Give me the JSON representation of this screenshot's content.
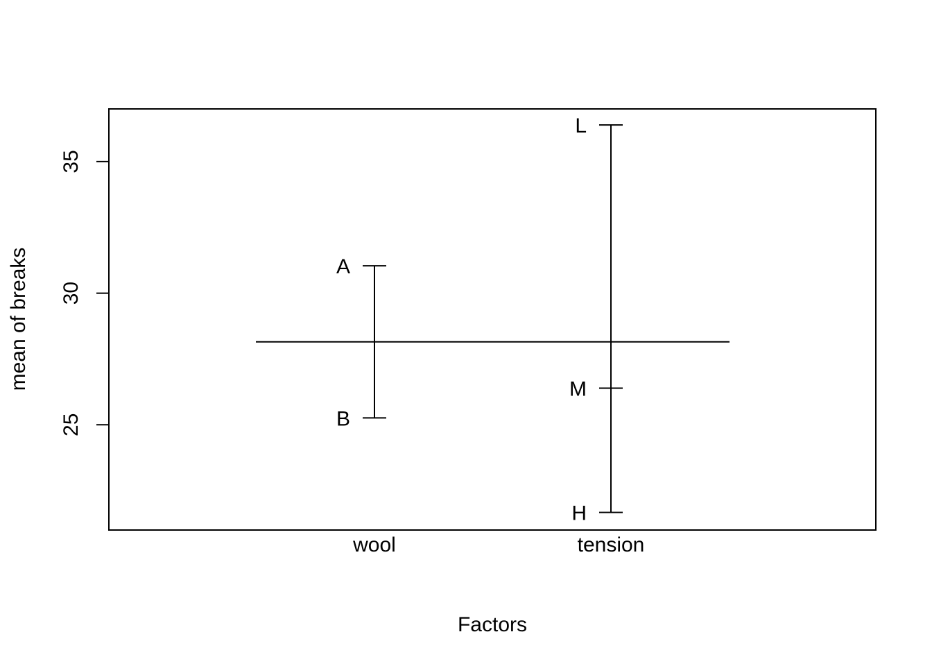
{
  "chart_data": {
    "type": "plot.design",
    "title": "",
    "xlabel": "Factors",
    "ylabel": "mean of breaks",
    "ylim": [
      21.0,
      37.0
    ],
    "yticks": [
      "25",
      "30",
      "35"
    ],
    "grand_mean": 28.15,
    "factors": [
      {
        "name": "wool",
        "levels": [
          {
            "label": "A",
            "value": 31.04
          },
          {
            "label": "B",
            "value": 25.26
          }
        ]
      },
      {
        "name": "tension",
        "levels": [
          {
            "label": "L",
            "value": 36.39
          },
          {
            "label": "M",
            "value": 26.39
          },
          {
            "label": "H",
            "value": 21.67
          }
        ]
      }
    ],
    "grid": false,
    "legend": "none"
  }
}
